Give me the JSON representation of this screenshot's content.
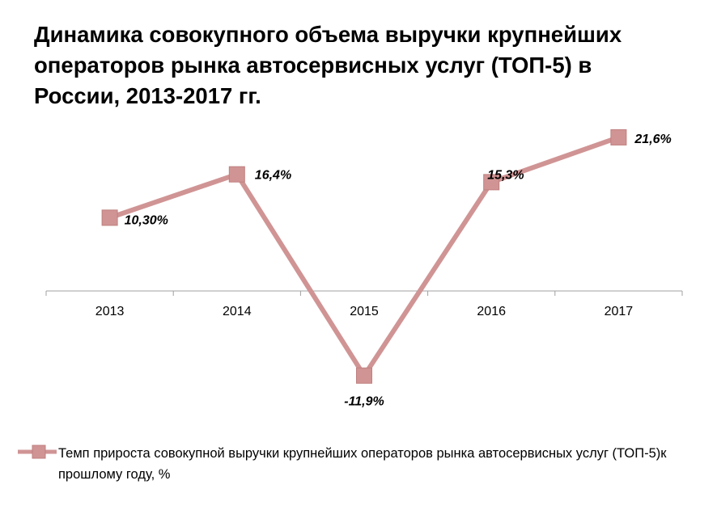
{
  "chart_data": {
    "type": "line",
    "title": "Динамика совокупного объема выручки крупнейших операторов рынка автосервисных услуг (ТОП-5) в России, 2013-2017 гг.",
    "categories": [
      "2013",
      "2014",
      "2015",
      "2016",
      "2017"
    ],
    "series": [
      {
        "name": "Темп прироста совокупной выручки крупнейших операторов рынка автосервисных услуг (ТОП-5)к прошлому году, %",
        "values": [
          10.3,
          16.4,
          -11.9,
          15.3,
          21.6
        ],
        "data_labels": [
          "10,30%",
          "16,4%",
          "-11,9%",
          "15,3%",
          "21,6%"
        ],
        "color": "#d09494"
      }
    ],
    "ylim": [
      -15,
      25
    ],
    "grid": false,
    "legend": "bottom",
    "marker": "square"
  }
}
